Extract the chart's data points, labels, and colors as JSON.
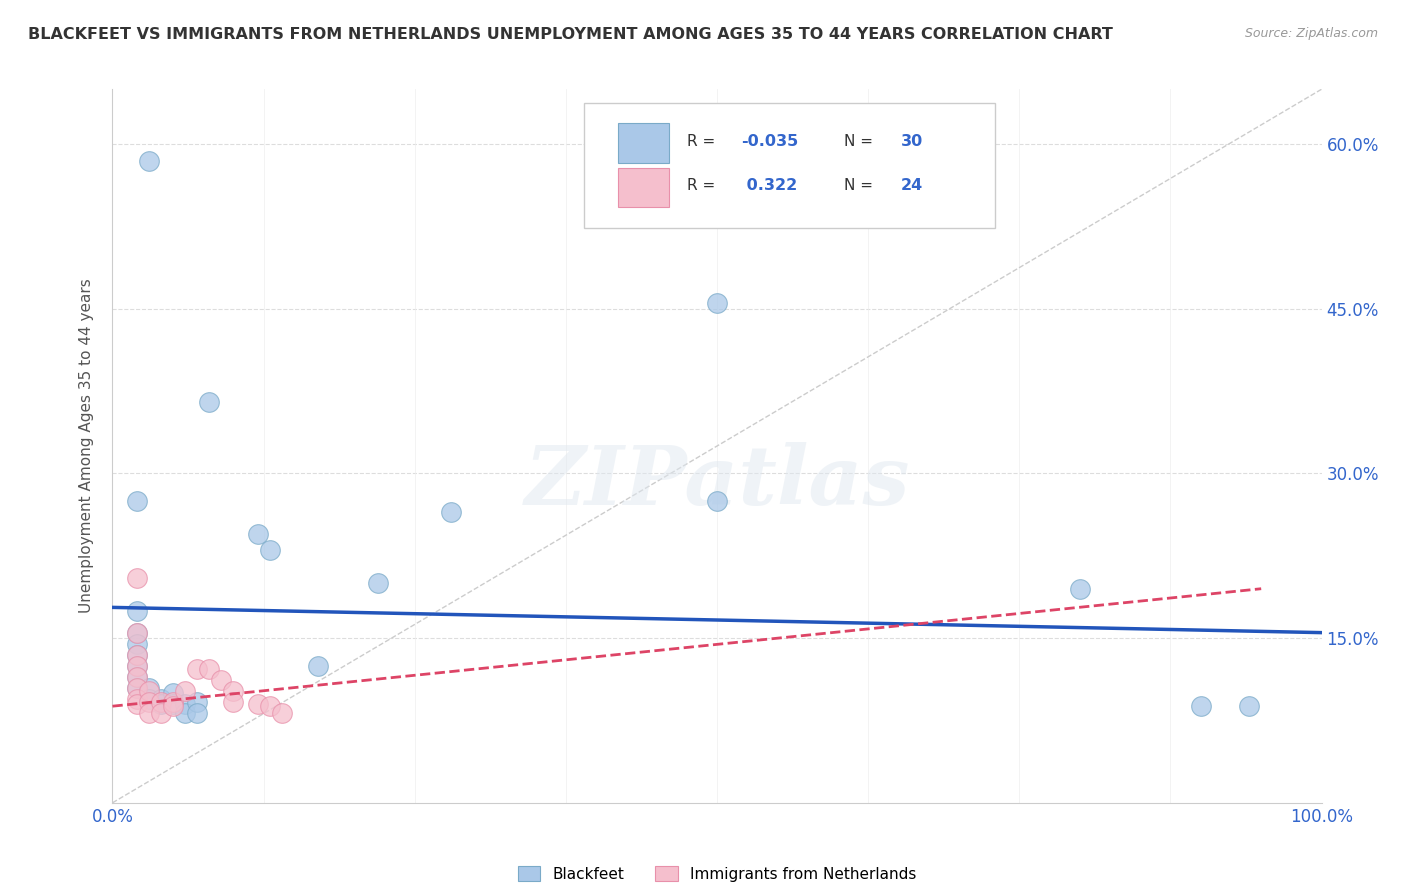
{
  "title": "BLACKFEET VS IMMIGRANTS FROM NETHERLANDS UNEMPLOYMENT AMONG AGES 35 TO 44 YEARS CORRELATION CHART",
  "source": "Source: ZipAtlas.com",
  "ylabel": "Unemployment Among Ages 35 to 44 years",
  "xlim": [
    0,
    1.0
  ],
  "ylim": [
    0,
    0.65
  ],
  "xticks": [
    0.0,
    0.125,
    0.25,
    0.375,
    0.5,
    0.625,
    0.75,
    0.875,
    1.0
  ],
  "xticklabels": [
    "0.0%",
    "",
    "",
    "",
    "",
    "",
    "",
    "",
    "100.0%"
  ],
  "ytick_positions": [
    0.15,
    0.3,
    0.45,
    0.6
  ],
  "yticklabels": [
    "15.0%",
    "30.0%",
    "45.0%",
    "60.0%"
  ],
  "background_color": "#ffffff",
  "grid_color": "#dddddd",
  "watermark": "ZIPatlas",
  "blue_color": "#aac8e8",
  "pink_color": "#f5bfcd",
  "blue_edge_color": "#7aaac8",
  "pink_edge_color": "#e890aa",
  "blue_line_color": "#2255bb",
  "pink_line_color": "#dd4466",
  "tick_label_color": "#3366cc",
  "blue_scatter": [
    [
      0.03,
      0.585
    ],
    [
      0.08,
      0.365
    ],
    [
      0.12,
      0.245
    ],
    [
      0.13,
      0.23
    ],
    [
      0.17,
      0.125
    ],
    [
      0.02,
      0.275
    ],
    [
      0.02,
      0.175
    ],
    [
      0.02,
      0.155
    ],
    [
      0.02,
      0.145
    ],
    [
      0.02,
      0.135
    ],
    [
      0.02,
      0.125
    ],
    [
      0.02,
      0.115
    ],
    [
      0.02,
      0.105
    ],
    [
      0.03,
      0.105
    ],
    [
      0.03,
      0.095
    ],
    [
      0.04,
      0.095
    ],
    [
      0.04,
      0.09
    ],
    [
      0.05,
      0.1
    ],
    [
      0.05,
      0.09
    ],
    [
      0.06,
      0.09
    ],
    [
      0.06,
      0.082
    ],
    [
      0.07,
      0.092
    ],
    [
      0.07,
      0.082
    ],
    [
      0.22,
      0.2
    ],
    [
      0.28,
      0.265
    ],
    [
      0.5,
      0.455
    ],
    [
      0.5,
      0.275
    ],
    [
      0.8,
      0.195
    ],
    [
      0.9,
      0.088
    ],
    [
      0.94,
      0.088
    ]
  ],
  "pink_scatter": [
    [
      0.02,
      0.205
    ],
    [
      0.02,
      0.155
    ],
    [
      0.02,
      0.135
    ],
    [
      0.02,
      0.125
    ],
    [
      0.02,
      0.115
    ],
    [
      0.02,
      0.105
    ],
    [
      0.02,
      0.095
    ],
    [
      0.02,
      0.09
    ],
    [
      0.03,
      0.102
    ],
    [
      0.03,
      0.092
    ],
    [
      0.03,
      0.082
    ],
    [
      0.04,
      0.092
    ],
    [
      0.04,
      0.082
    ],
    [
      0.05,
      0.092
    ],
    [
      0.05,
      0.088
    ],
    [
      0.06,
      0.102
    ],
    [
      0.07,
      0.122
    ],
    [
      0.08,
      0.122
    ],
    [
      0.09,
      0.112
    ],
    [
      0.1,
      0.102
    ],
    [
      0.1,
      0.092
    ],
    [
      0.12,
      0.09
    ],
    [
      0.13,
      0.088
    ],
    [
      0.14,
      0.082
    ]
  ],
  "blue_trend_x": [
    0.0,
    1.0
  ],
  "blue_trend_y": [
    0.178,
    0.155
  ],
  "pink_trend_x": [
    0.0,
    0.95
  ],
  "pink_trend_y": [
    0.088,
    0.195
  ],
  "diag_line_x": [
    0.0,
    1.0
  ],
  "diag_line_y": [
    0.0,
    0.65
  ]
}
